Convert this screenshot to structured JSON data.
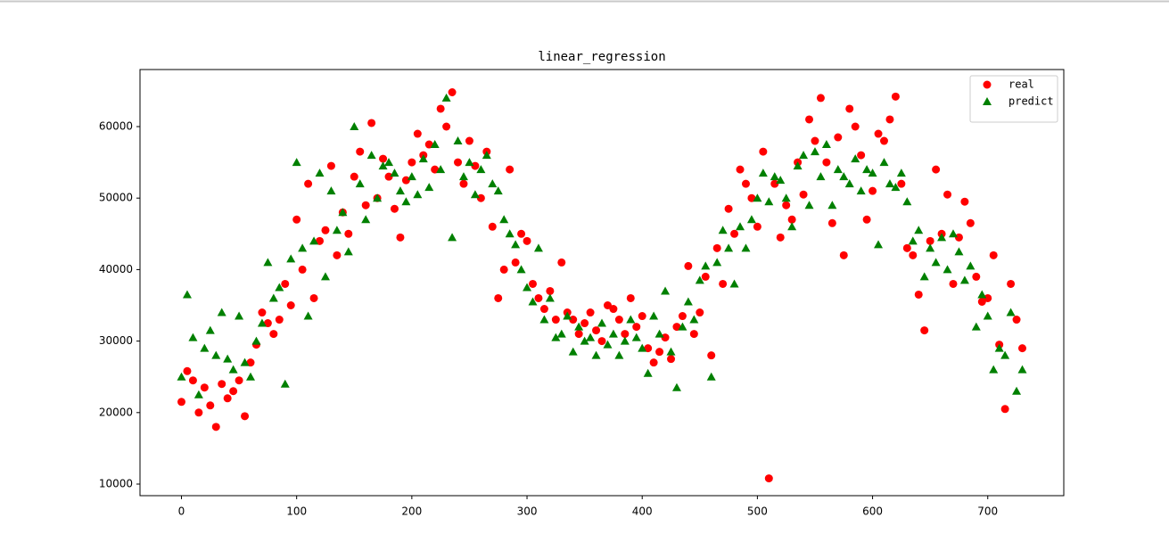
{
  "chart_data": {
    "type": "scatter",
    "title": "linear_regression",
    "x": [
      0,
      5,
      10,
      15,
      20,
      25,
      30,
      35,
      40,
      45,
      50,
      55,
      60,
      65,
      70,
      75,
      80,
      85,
      90,
      95,
      100,
      105,
      110,
      115,
      120,
      125,
      130,
      135,
      140,
      145,
      150,
      155,
      160,
      165,
      170,
      175,
      180,
      185,
      190,
      195,
      200,
      205,
      210,
      215,
      220,
      225,
      230,
      235,
      240,
      245,
      250,
      255,
      260,
      265,
      270,
      275,
      280,
      285,
      290,
      295,
      300,
      305,
      310,
      315,
      320,
      325,
      330,
      335,
      340,
      345,
      350,
      355,
      360,
      365,
      370,
      375,
      380,
      385,
      390,
      395,
      400,
      405,
      410,
      415,
      420,
      425,
      430,
      435,
      440,
      445,
      450,
      455,
      460,
      465,
      470,
      475,
      480,
      485,
      490,
      495,
      500,
      505,
      510,
      515,
      520,
      525,
      530,
      535,
      540,
      545,
      550,
      555,
      560,
      565,
      570,
      575,
      580,
      585,
      590,
      595,
      600,
      605,
      610,
      615,
      620,
      625,
      630,
      635,
      640,
      645,
      650,
      655,
      660,
      665,
      670,
      675,
      680,
      685,
      690,
      695,
      700,
      705,
      710,
      715,
      720,
      725,
      730
    ],
    "series": [
      {
        "name": "real",
        "color": "#ff0000",
        "marker": "circle",
        "values": [
          21500,
          25800,
          24500,
          20000,
          23500,
          21000,
          18000,
          24000,
          22000,
          23000,
          24500,
          19500,
          27000,
          29500,
          34000,
          32500,
          31000,
          33000,
          38000,
          35000,
          47000,
          40000,
          52000,
          36000,
          44000,
          45500,
          54500,
          42000,
          48000,
          45000,
          53000,
          56500,
          49000,
          60500,
          50000,
          55500,
          53000,
          48500,
          44500,
          52500,
          55000,
          59000,
          56000,
          57500,
          54000,
          62500,
          60000,
          64800,
          55000,
          52000,
          58000,
          54500,
          50000,
          56500,
          46000,
          36000,
          40000,
          54000,
          41000,
          45000,
          44000,
          38000,
          36000,
          34500,
          37000,
          33000,
          41000,
          34000,
          33000,
          31000,
          32500,
          34000,
          31500,
          30000,
          35000,
          34500,
          33000,
          31000,
          36000,
          32000,
          33500,
          29000,
          27000,
          28500,
          30500,
          27500,
          32000,
          33500,
          40500,
          31000,
          34000,
          39000,
          28000,
          43000,
          38000,
          48500,
          45000,
          54000,
          52000,
          50000,
          46000,
          56500,
          10800,
          52000,
          44500,
          49000,
          47000,
          55000,
          50500,
          61000,
          58000,
          64000,
          55000,
          46500,
          58500,
          42000,
          62500,
          60000,
          56000,
          47000,
          51000,
          59000,
          58000,
          61000,
          64200,
          52000,
          43000,
          42000,
          36500,
          31500,
          44000,
          54000,
          45000,
          50500,
          38000,
          44500,
          49500,
          46500,
          39000,
          35500,
          36000,
          42000,
          29500,
          20500,
          38000,
          33000,
          29000
        ]
      },
      {
        "name": "predict",
        "color": "#008000",
        "marker": "triangle",
        "values": [
          25000,
          36500,
          30500,
          22500,
          29000,
          31500,
          28000,
          34000,
          27500,
          26000,
          33500,
          27000,
          25000,
          30000,
          32500,
          41000,
          36000,
          37500,
          24000,
          41500,
          55000,
          43000,
          33500,
          44000,
          53500,
          39000,
          51000,
          45500,
          48000,
          42500,
          60000,
          52000,
          47000,
          56000,
          50000,
          54500,
          55000,
          53500,
          51000,
          49500,
          53000,
          50500,
          55500,
          51500,
          57500,
          54000,
          64000,
          44500,
          58000,
          53000,
          55000,
          50500,
          54000,
          56000,
          52000,
          51000,
          47000,
          45000,
          43500,
          40000,
          37500,
          35500,
          43000,
          33000,
          36000,
          30500,
          31000,
          33500,
          28500,
          32000,
          30000,
          30500,
          28000,
          32500,
          29500,
          31000,
          28000,
          30000,
          33000,
          30500,
          29000,
          25500,
          33500,
          31000,
          37000,
          28500,
          23500,
          32000,
          35500,
          33000,
          38500,
          40500,
          25000,
          41000,
          45500,
          43000,
          38000,
          46000,
          43000,
          47000,
          50000,
          53500,
          49500,
          53000,
          52500,
          50000,
          46000,
          54500,
          56000,
          49000,
          56500,
          53000,
          57500,
          49000,
          54000,
          53000,
          52000,
          55500,
          51000,
          54000,
          53500,
          43500,
          55000,
          52000,
          51500,
          53500,
          49500,
          44000,
          45500,
          39000,
          43000,
          41000,
          44500,
          40000,
          45000,
          42500,
          38500,
          40500,
          32000,
          36500,
          33500,
          26000,
          29000,
          28000,
          34000,
          23000,
          26000
        ]
      }
    ],
    "xlim": [
      -36,
      766
    ],
    "ylim": [
      8380,
      67980
    ],
    "xticks": [
      0,
      100,
      200,
      300,
      400,
      500,
      600,
      700
    ],
    "yticks": [
      10000,
      20000,
      30000,
      40000,
      50000,
      60000
    ],
    "legend": "upper right"
  }
}
